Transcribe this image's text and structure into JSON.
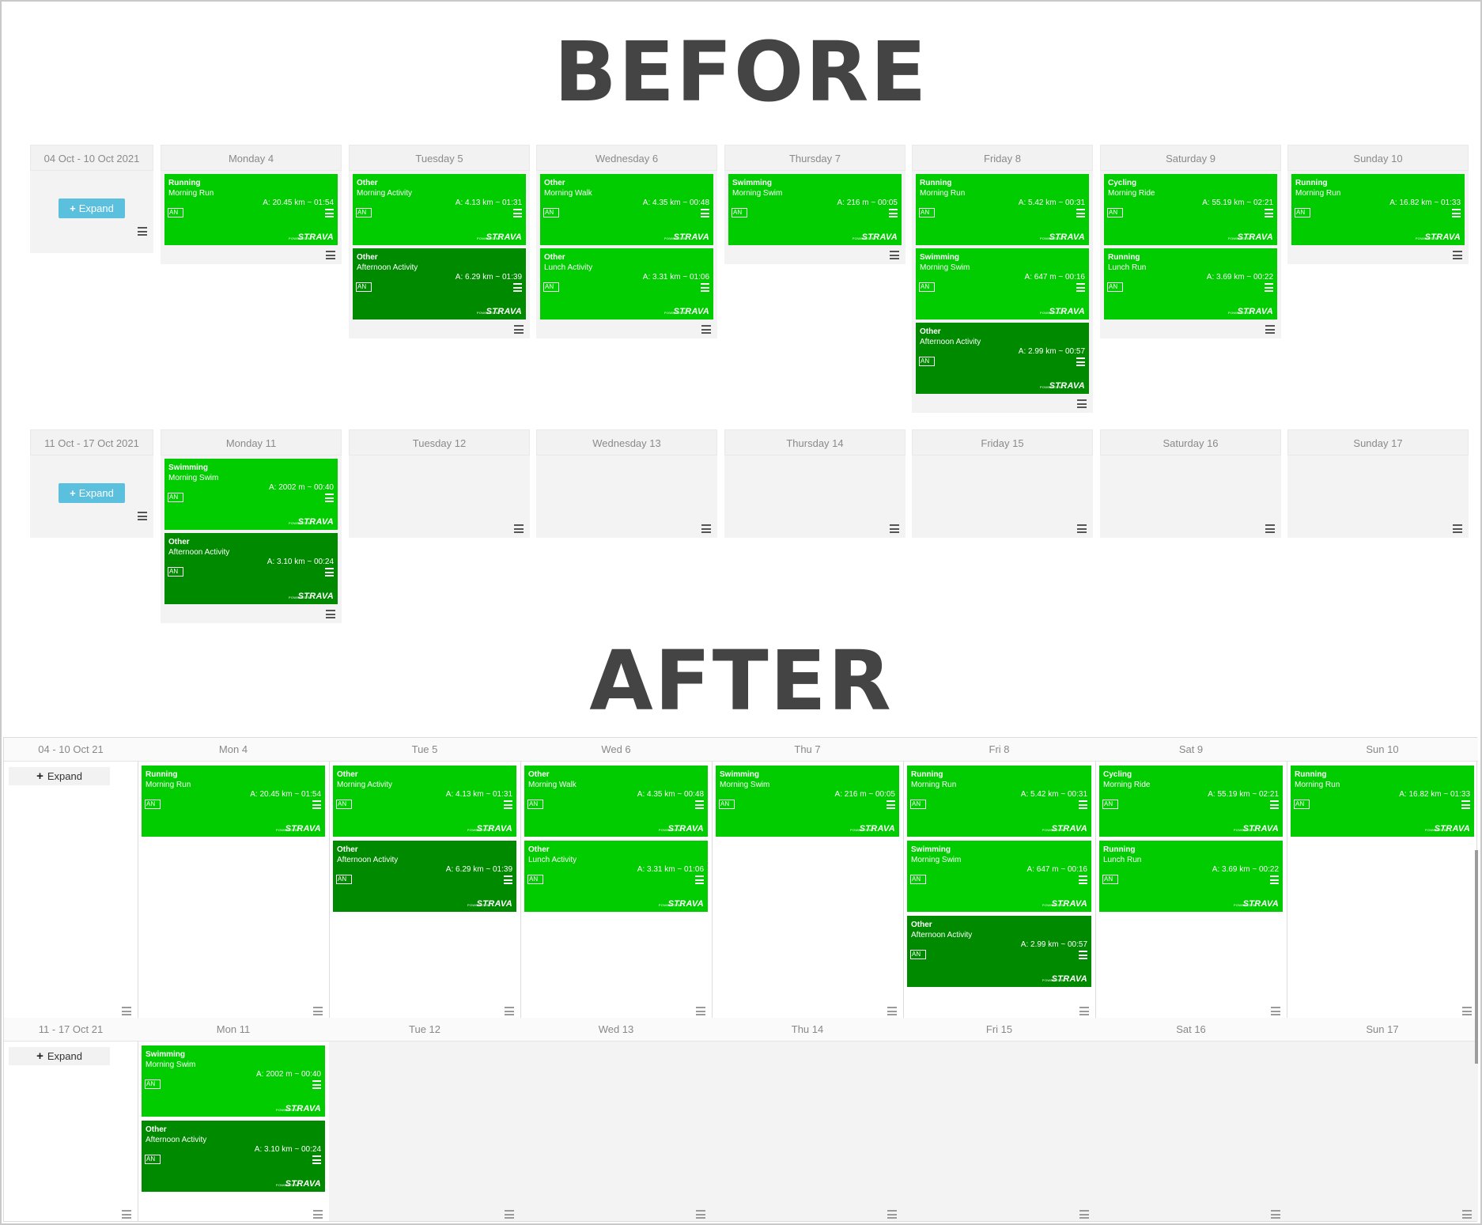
{
  "labels": {
    "before": "BEFORE",
    "after": "AFTER"
  },
  "ui": {
    "expand_label": "Expand",
    "powered_by": "POWERED BY",
    "brand": "STRAVA",
    "athlete": "AN"
  },
  "colors": {
    "tile_light": "#00cc00",
    "tile_dark": "#008a00",
    "expand_button": "#5bc0de",
    "header_bg": "#f2f2f2",
    "cell_bg": "#f3f3f3"
  },
  "icons": {
    "expand": "plus-icon",
    "menu": "hamburger-menu-icon"
  },
  "before": {
    "weeks": [
      {
        "range": "04 Oct - 10 Oct 2021",
        "days": [
          {
            "name": "Monday 4",
            "activities": [
              {
                "type": "Running",
                "name": "Morning Run",
                "stats": "A: 20.45 km ~ 01:54",
                "shade": "light"
              }
            ]
          },
          {
            "name": "Tuesday 5",
            "activities": [
              {
                "type": "Other",
                "name": "Morning Activity",
                "stats": "A: 4.13 km ~ 01:31",
                "shade": "light"
              },
              {
                "type": "Other",
                "name": "Afternoon Activity",
                "stats": "A: 6.29 km ~ 01:39",
                "shade": "dark"
              }
            ]
          },
          {
            "name": "Wednesday 6",
            "activities": [
              {
                "type": "Other",
                "name": "Morning Walk",
                "stats": "A: 4.35 km ~ 00:48",
                "shade": "light"
              },
              {
                "type": "Other",
                "name": "Lunch Activity",
                "stats": "A: 3.31 km ~ 01:06",
                "shade": "light"
              }
            ]
          },
          {
            "name": "Thursday 7",
            "activities": [
              {
                "type": "Swimming",
                "name": "Morning Swim",
                "stats": "A: 216 m ~ 00:05",
                "shade": "light"
              }
            ]
          },
          {
            "name": "Friday 8",
            "activities": [
              {
                "type": "Running",
                "name": "Morning Run",
                "stats": "A: 5.42 km ~ 00:31",
                "shade": "light"
              },
              {
                "type": "Swimming",
                "name": "Morning Swim",
                "stats": "A: 647 m ~ 00:16",
                "shade": "light"
              },
              {
                "type": "Other",
                "name": "Afternoon Activity",
                "stats": "A: 2.99 km ~ 00:57",
                "shade": "dark"
              }
            ]
          },
          {
            "name": "Saturday 9",
            "activities": [
              {
                "type": "Cycling",
                "name": "Morning Ride",
                "stats": "A: 55.19 km ~ 02:21",
                "shade": "light"
              },
              {
                "type": "Running",
                "name": "Lunch Run",
                "stats": "A: 3.69 km ~ 00:22",
                "shade": "light"
              }
            ]
          },
          {
            "name": "Sunday 10",
            "activities": [
              {
                "type": "Running",
                "name": "Morning Run",
                "stats": "A: 16.82 km ~ 01:33",
                "shade": "light"
              }
            ]
          }
        ]
      },
      {
        "range": "11 Oct - 17 Oct 2021",
        "days": [
          {
            "name": "Monday 11",
            "activities": [
              {
                "type": "Swimming",
                "name": "Morning Swim",
                "stats": "A: 2002 m ~ 00:40",
                "shade": "light"
              },
              {
                "type": "Other",
                "name": "Afternoon Activity",
                "stats": "A: 3.10 km ~ 00:24",
                "shade": "dark"
              }
            ]
          },
          {
            "name": "Tuesday 12",
            "activities": []
          },
          {
            "name": "Wednesday 13",
            "activities": []
          },
          {
            "name": "Thursday 14",
            "activities": []
          },
          {
            "name": "Friday 15",
            "activities": []
          },
          {
            "name": "Saturday 16",
            "activities": []
          },
          {
            "name": "Sunday 17",
            "activities": []
          }
        ]
      }
    ]
  },
  "after": {
    "weeks": [
      {
        "range": "04 - 10 Oct 21",
        "days": [
          {
            "name": "Mon 4",
            "activities": [
              {
                "type": "Running",
                "name": "Morning Run",
                "stats": "A: 20.45 km ~ 01:54",
                "shade": "light"
              }
            ]
          },
          {
            "name": "Tue 5",
            "activities": [
              {
                "type": "Other",
                "name": "Morning Activity",
                "stats": "A: 4.13 km ~ 01:31",
                "shade": "light"
              },
              {
                "type": "Other",
                "name": "Afternoon Activity",
                "stats": "A: 6.29 km ~ 01:39",
                "shade": "dark"
              }
            ]
          },
          {
            "name": "Wed 6",
            "activities": [
              {
                "type": "Other",
                "name": "Morning Walk",
                "stats": "A: 4.35 km ~ 00:48",
                "shade": "light"
              },
              {
                "type": "Other",
                "name": "Lunch Activity",
                "stats": "A: 3.31 km ~ 01:06",
                "shade": "light"
              }
            ]
          },
          {
            "name": "Thu 7",
            "activities": [
              {
                "type": "Swimming",
                "name": "Morning Swim",
                "stats": "A: 216 m ~ 00:05",
                "shade": "light"
              }
            ]
          },
          {
            "name": "Fri 8",
            "activities": [
              {
                "type": "Running",
                "name": "Morning Run",
                "stats": "A: 5.42 km ~ 00:31",
                "shade": "light"
              },
              {
                "type": "Swimming",
                "name": "Morning Swim",
                "stats": "A: 647 m ~ 00:16",
                "shade": "light"
              },
              {
                "type": "Other",
                "name": "Afternoon Activity",
                "stats": "A: 2.99 km ~ 00:57",
                "shade": "dark"
              }
            ]
          },
          {
            "name": "Sat 9",
            "activities": [
              {
                "type": "Cycling",
                "name": "Morning Ride",
                "stats": "A: 55.19 km ~ 02:21",
                "shade": "light"
              },
              {
                "type": "Running",
                "name": "Lunch Run",
                "stats": "A: 3.69 km ~ 00:22",
                "shade": "light"
              }
            ]
          },
          {
            "name": "Sun 10",
            "activities": [
              {
                "type": "Running",
                "name": "Morning Run",
                "stats": "A: 16.82 km ~ 01:33",
                "shade": "light"
              }
            ]
          }
        ]
      },
      {
        "range": "11 - 17 Oct 21",
        "days": [
          {
            "name": "Mon 11",
            "activities": [
              {
                "type": "Swimming",
                "name": "Morning Swim",
                "stats": "A: 2002 m ~ 00:40",
                "shade": "light"
              },
              {
                "type": "Other",
                "name": "Afternoon Activity",
                "stats": "A: 3.10 km ~ 00:24",
                "shade": "dark"
              }
            ]
          },
          {
            "name": "Tue 12",
            "activities": []
          },
          {
            "name": "Wed 13",
            "activities": []
          },
          {
            "name": "Thu 14",
            "activities": []
          },
          {
            "name": "Fri 15",
            "activities": []
          },
          {
            "name": "Sat 16",
            "activities": []
          },
          {
            "name": "Sun 17",
            "activities": []
          }
        ]
      }
    ]
  }
}
